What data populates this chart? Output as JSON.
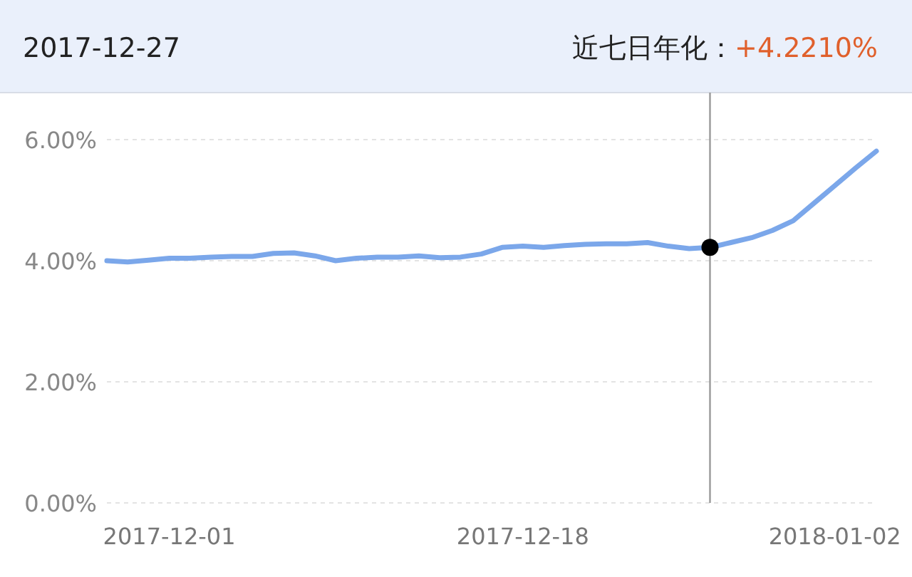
{
  "chart_data": {
    "type": "line",
    "title": "2017-12-27",
    "annotations": [
      "近七日年化：",
      "+4.2210%"
    ],
    "x": [
      "2017-11-28",
      "2017-11-29",
      "2017-11-30",
      "2017-12-01",
      "2017-12-02",
      "2017-12-03",
      "2017-12-04",
      "2017-12-05",
      "2017-12-06",
      "2017-12-07",
      "2017-12-08",
      "2017-12-09",
      "2017-12-10",
      "2017-12-11",
      "2017-12-12",
      "2017-12-13",
      "2017-12-14",
      "2017-12-15",
      "2017-12-16",
      "2017-12-17",
      "2017-12-18",
      "2017-12-19",
      "2017-12-20",
      "2017-12-21",
      "2017-12-22",
      "2017-12-23",
      "2017-12-24",
      "2017-12-25",
      "2017-12-26",
      "2017-12-27",
      "2017-12-28",
      "2017-12-29",
      "2017-12-30",
      "2017-12-31",
      "2018-01-01",
      "2018-01-02",
      "2018-01-03",
      "2018-01-04"
    ],
    "series": [
      {
        "color": "#7ba7ea",
        "values": [
          4.0,
          3.98,
          4.01,
          4.04,
          4.04,
          4.06,
          4.07,
          4.07,
          4.12,
          4.13,
          4.08,
          4.0,
          4.04,
          4.06,
          4.06,
          4.08,
          4.05,
          4.06,
          4.11,
          4.22,
          4.24,
          4.22,
          4.25,
          4.27,
          4.28,
          4.28,
          4.3,
          4.24,
          4.2,
          4.22,
          4.3,
          4.38,
          4.5,
          4.66,
          4.95,
          5.24,
          5.53,
          5.81
        ]
      },
      {
        "type": "scatter",
        "x": [
          "2017-12-27"
        ],
        "values": [
          4.22
        ],
        "color": "#000000",
        "marker": "circle"
      }
    ],
    "xlim": [
      "2017-11-28",
      "2018-01-04"
    ],
    "xticks": [
      {
        "value": "2017-12-01",
        "label": "2017-12-01"
      },
      {
        "value": "2017-12-18",
        "label": "2017-12-18"
      },
      {
        "value": "2018-01-02",
        "label": "2018-01-02"
      }
    ],
    "ylim": [
      0,
      6
    ],
    "yticks": [
      {
        "value": 0,
        "label": "0.00%"
      },
      {
        "value": 2,
        "label": "2.00%"
      },
      {
        "value": 4,
        "label": "4.00%"
      },
      {
        "value": 6,
        "label": "6.00%"
      }
    ],
    "grid": "y",
    "ref_lines": [
      {
        "axis": "x",
        "value": "2017-12-27",
        "color": "#999999"
      }
    ]
  }
}
